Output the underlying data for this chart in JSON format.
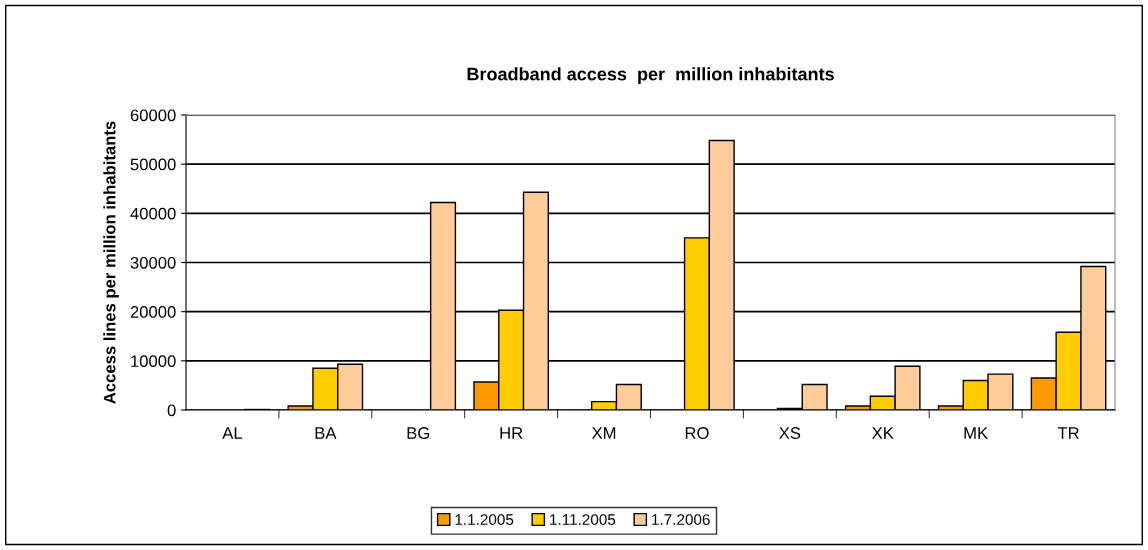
{
  "chart_data": {
    "type": "bar",
    "title": "Broadband access  per  million inhabitants",
    "ylabel": "Access lines per million inhabitants",
    "categories": [
      "AL",
      "BA",
      "BG",
      "HR",
      "XM",
      "RO",
      "XS",
      "XK",
      "MK",
      "TR"
    ],
    "series": [
      {
        "name": "1.1.2005",
        "color": "#ff9900",
        "values": [
          null,
          800,
          null,
          5700,
          null,
          null,
          null,
          800,
          800,
          6500
        ]
      },
      {
        "name": "1.11.2005",
        "color": "#ffcc00",
        "values": [
          null,
          8500,
          null,
          20300,
          1700,
          35000,
          300,
          2800,
          6000,
          15800
        ]
      },
      {
        "name": "1.7.2006",
        "color": "#ffcc99",
        "values": [
          100,
          9300,
          42200,
          44300,
          5200,
          54800,
          5200,
          8900,
          7300,
          29200
        ]
      }
    ],
    "ylim": [
      0,
      60000
    ],
    "yticks": [
      0,
      10000,
      20000,
      30000,
      40000,
      50000,
      60000
    ],
    "grid": "y",
    "legend": "bottom"
  }
}
